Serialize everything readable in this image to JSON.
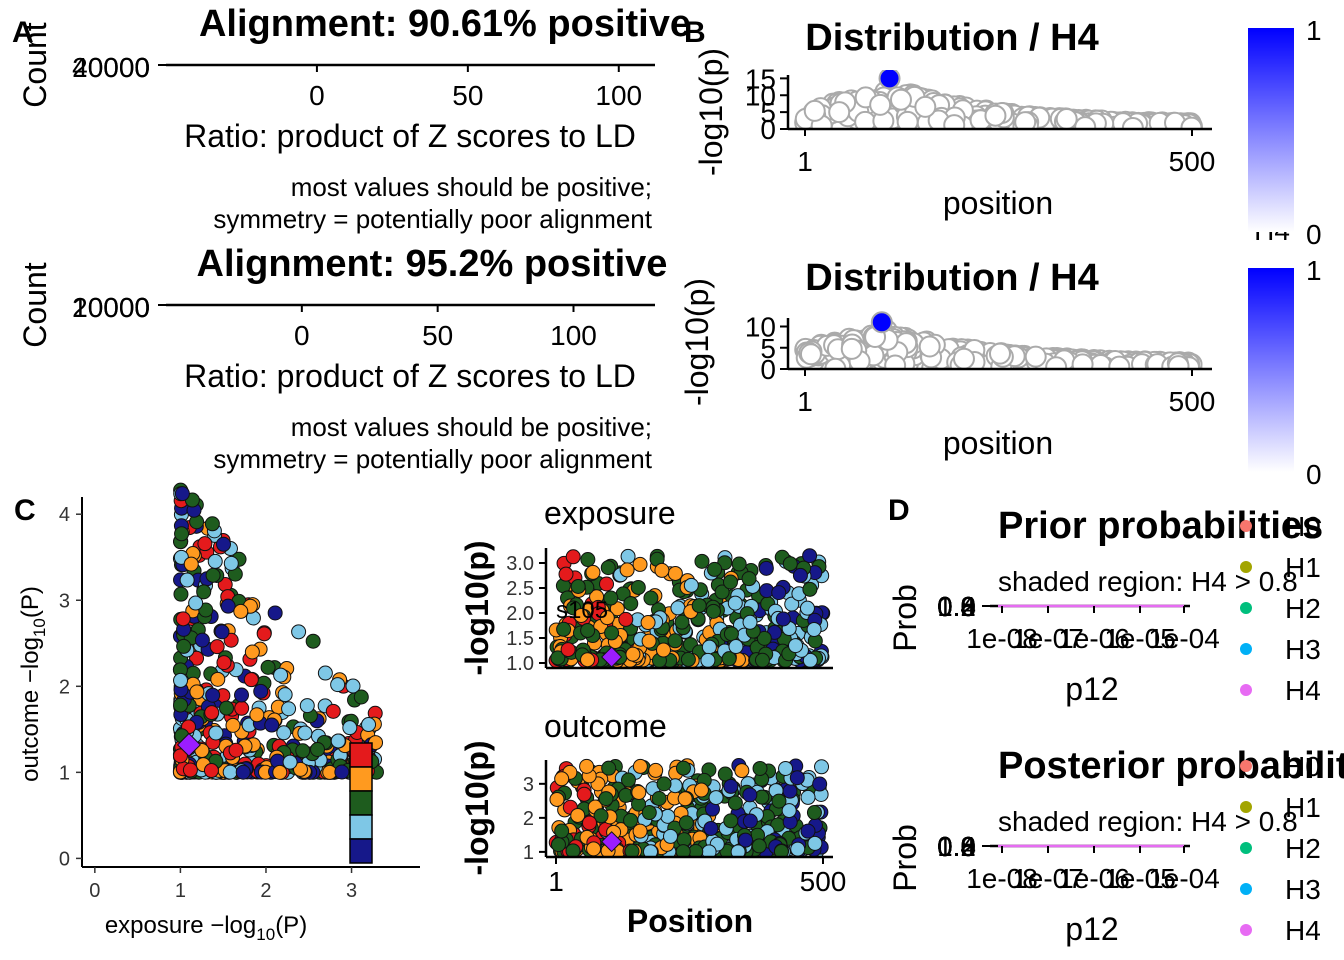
{
  "panel_labels": [
    "A",
    "B",
    "C",
    "D"
  ],
  "chart_data": [
    {
      "id": "A1",
      "type": "bar",
      "title": "Alignment: 90.61% positive",
      "xlabel": "Ratio: product of Z scores to LD",
      "ylabel": "Count",
      "xticks": [
        "0",
        "50",
        "100"
      ],
      "xtick_values": [
        0,
        50,
        100
      ],
      "xlim": [
        -50,
        112
      ],
      "yticks": [
        "0",
        "20000",
        "40000"
      ],
      "note_lines": [
        "most values should be positive;",
        "symmetry = potentially poor alignment"
      ]
    },
    {
      "id": "A2",
      "type": "bar",
      "title": "Alignment: 95.2% positive",
      "xlabel": "Ratio: product of Z scores to LD",
      "ylabel": "Count",
      "xticks": [
        "0",
        "50",
        "100"
      ],
      "xtick_values": [
        0,
        50,
        100
      ],
      "xlim": [
        -50,
        130
      ],
      "yticks": [
        "0",
        "10000",
        "20000"
      ],
      "note_lines": [
        "most values should be positive;",
        "symmetry = potentially poor alignment"
      ]
    },
    {
      "id": "B1",
      "type": "scatter",
      "title": "Distribution / H4",
      "xlabel": "position",
      "ylabel": "-log10(p)",
      "xticks": [
        "1",
        "500"
      ],
      "xlim": [
        1,
        500
      ],
      "yticks": [
        "0",
        "5",
        "10",
        "15"
      ],
      "ylim": [
        0,
        16
      ],
      "legend_title": "H4",
      "legend_ticks": [
        "1",
        "0"
      ],
      "seed": 11,
      "peak_pos": 110,
      "peak_val": 15,
      "n_points": 500
    },
    {
      "id": "B2",
      "type": "scatter",
      "title": "Distribution / H4",
      "xlabel": "position",
      "ylabel": "-log10(p)",
      "xticks": [
        "1",
        "500"
      ],
      "xlim": [
        1,
        500
      ],
      "yticks": [
        "0",
        "5",
        "10"
      ],
      "ylim": [
        0,
        12
      ],
      "legend_title": "H4",
      "legend_ticks": [
        "1",
        "0"
      ],
      "seed": 23,
      "peak_pos": 100,
      "peak_val": 11,
      "n_points": 500
    },
    {
      "id": "C_main",
      "type": "scatter",
      "xlabel_main": "exposure −log",
      "xlabel_sub": "10",
      "xlabel_end": "(P)",
      "ylabel_main": "outcome −log",
      "ylabel_sub": "10",
      "ylabel_end": "(P)",
      "xticks": [
        "0",
        "1",
        "2",
        "3"
      ],
      "xlim": [
        -0.15,
        3.8
      ],
      "yticks": [
        "0",
        "1",
        "2",
        "3",
        "4"
      ],
      "ylim": [
        -0.1,
        4.2
      ],
      "highlight": {
        "x": 1.1,
        "y": 1.32
      },
      "color_scale": [
        "#e41a1c",
        "#ff9a1f",
        "#1e5c1e",
        "#7ec7e6",
        "#16188a"
      ],
      "seed": 5,
      "n_points": 520
    },
    {
      "id": "C_exposure",
      "type": "scatter",
      "title": "exposure",
      "ylabel": "-log10(p)",
      "yticks": [
        "1.0",
        "1.5",
        "2.0",
        "2.5",
        "3.0"
      ],
      "ylim": [
        0.9,
        3.3
      ],
      "xlim": [
        1,
        500
      ],
      "annotation": "s105",
      "highlight": {
        "x": 105,
        "y": 1.12
      },
      "seed": 7,
      "n_points": 520
    },
    {
      "id": "C_outcome",
      "type": "scatter",
      "title": "outcome",
      "ylabel": "-log10(p)",
      "xlabel": "Position",
      "xticks": [
        "1",
        "500"
      ],
      "xlim": [
        1,
        500
      ],
      "yticks": [
        "1",
        "2",
        "3"
      ],
      "ylim": [
        0.85,
        3.7
      ],
      "highlight": {
        "x": 105,
        "y": 1.3
      },
      "seed": 9,
      "n_points": 520
    },
    {
      "id": "D_prior",
      "type": "line",
      "title": "Prior probabilities",
      "subtitle": "shaded region: H4 > 0.8",
      "xlabel": "p12",
      "ylabel": "Prob",
      "xticks": [
        "1e-08",
        "1e-07",
        "1e-06",
        "1e-05",
        "1e-04"
      ],
      "yticks": [
        "0.0",
        "0.2",
        "0.4",
        "0.6",
        "0.8",
        "1.0"
      ],
      "legend": [
        "H0",
        "H1",
        "H2",
        "H3",
        "H4"
      ]
    },
    {
      "id": "D_post",
      "type": "line",
      "title": "Posterior probabilities",
      "subtitle": "shaded region: H4 > 0.8",
      "xlabel": "p12",
      "ylabel": "Prob",
      "xticks": [
        "1e-08",
        "1e-07",
        "1e-06",
        "1e-05",
        "1e-04"
      ],
      "yticks": [
        "0.0",
        "0.2",
        "0.4",
        "0.6",
        "0.8",
        "1.0"
      ],
      "legend": [
        "H0",
        "H1",
        "H2",
        "H3",
        "H4"
      ]
    }
  ],
  "legend_colors": [
    "#f8766d",
    "#a3a500",
    "#00bf7d",
    "#00b0f6",
    "#e76bf3"
  ],
  "h4_gradient": [
    "#ffffff",
    "#0000ff"
  ],
  "point_grey": "#aaaaaa",
  "highlight_color": "#9b1dff"
}
